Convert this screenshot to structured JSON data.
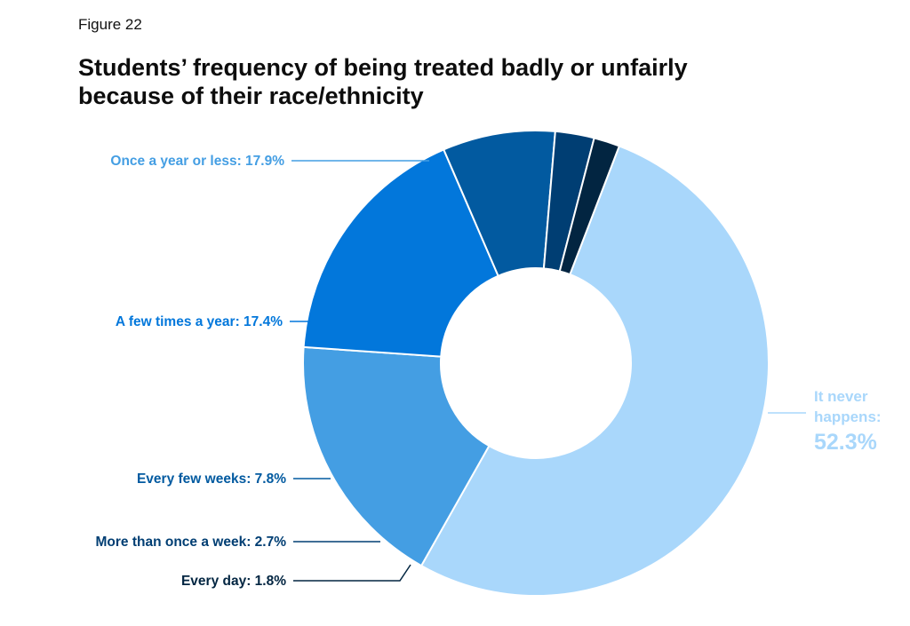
{
  "figure_label": "Figure 22",
  "title_line1": "Students’ frequency of being treated badly or unfairly",
  "title_line2": "because of their race/ethnicity",
  "chart_data": {
    "type": "pie",
    "donut": true,
    "title": "Students’ frequency of being treated badly or unfairly because of their race/ethnicity",
    "categories": [
      "It never happens",
      "Once a year or less",
      "A few times a year",
      "Every few weeks",
      "More than once a week",
      "Every day"
    ],
    "values": [
      52.3,
      17.9,
      17.4,
      7.8,
      2.7,
      1.8
    ],
    "colors": [
      "#a9d7fb",
      "#449ee3",
      "#0277db",
      "#025aa0",
      "#003e73",
      "#022541"
    ],
    "labels": [
      "It never happens: 52.3%",
      "Once a year or less: 17.9%",
      "A few times a year: 17.4%",
      "Every few weeks: 7.8%",
      "More than once a week: 2.7%",
      "Every day: 1.8%"
    ],
    "big_label_lines": [
      "It never",
      "happens:",
      "52.3%"
    ],
    "legend": "none"
  }
}
